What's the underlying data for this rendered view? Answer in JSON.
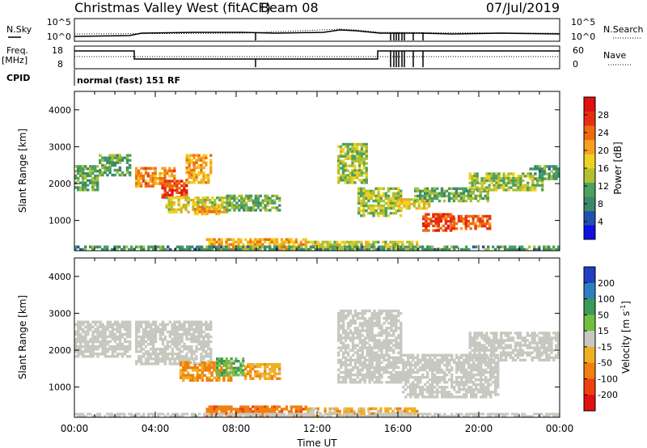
{
  "header": {
    "title": "Christmas Valley West (fitACF)",
    "beam": "Beam 08",
    "date": "07/Jul/2019"
  },
  "ancillary": {
    "nsky_label": "N.Sky",
    "nsearch_label": "N.Search",
    "freq_label_line1": "Freq.",
    "freq_label_line2": "[MHz]",
    "nave_label": "Nave",
    "cpid_label": "CPID",
    "cpid_text": "normal (fast) 151 RF",
    "noise_ticks": [
      "10^5",
      "10^0"
    ],
    "freq_ticks": [
      "18",
      "8"
    ],
    "nave_ticks": [
      "60",
      "0"
    ]
  },
  "chart_data": [
    {
      "type": "heatmap",
      "quantity": "power",
      "xlabel": "",
      "ylabel": "Slant Range [km]",
      "x_range_hours": [
        0,
        24
      ],
      "ylim": [
        180,
        4500
      ],
      "y_ticks": [
        1000,
        2000,
        3000,
        4000
      ],
      "colorbar": {
        "label": "Power [dB]",
        "ticks": [
          4,
          8,
          12,
          16,
          20,
          24,
          28
        ],
        "range": [
          0,
          32
        ],
        "colors": [
          "#1010e0",
          "#2050b0",
          "#3a8a6a",
          "#4ca060",
          "#b0c030",
          "#f0d020",
          "#f7a020",
          "#f06a10",
          "#e83010",
          "#e01010"
        ]
      },
      "patches": [
        {
          "t0": 0.0,
          "t1": 1.2,
          "r0": 1800,
          "r1": 2500,
          "value": 12
        },
        {
          "t0": 1.2,
          "t1": 2.8,
          "r0": 2200,
          "r1": 2800,
          "value": 11
        },
        {
          "t0": 3.0,
          "t1": 5.0,
          "r0": 1900,
          "r1": 2450,
          "value": 22
        },
        {
          "t0": 4.3,
          "t1": 5.6,
          "r0": 1600,
          "r1": 2100,
          "value": 26
        },
        {
          "t0": 5.5,
          "t1": 6.8,
          "r0": 2000,
          "r1": 2800,
          "value": 20
        },
        {
          "t0": 4.5,
          "t1": 7.6,
          "r0": 1200,
          "r1": 1650,
          "value": 16
        },
        {
          "t0": 5.8,
          "t1": 7.2,
          "r0": 1150,
          "r1": 1400,
          "value": 22
        },
        {
          "t0": 7.5,
          "t1": 10.2,
          "r0": 1250,
          "r1": 1700,
          "value": 12
        },
        {
          "t0": 13.0,
          "t1": 14.5,
          "r0": 2000,
          "r1": 3100,
          "value": 14
        },
        {
          "t0": 14.0,
          "t1": 16.2,
          "r0": 1100,
          "r1": 1900,
          "value": 15
        },
        {
          "t0": 16.0,
          "t1": 17.6,
          "r0": 1300,
          "r1": 1600,
          "value": 18
        },
        {
          "t0": 17.2,
          "t1": 18.8,
          "r0": 700,
          "r1": 1200,
          "value": 26
        },
        {
          "t0": 18.6,
          "t1": 20.6,
          "r0": 750,
          "r1": 1150,
          "value": 25
        },
        {
          "t0": 16.8,
          "t1": 20.5,
          "r0": 1500,
          "r1": 1900,
          "value": 12
        },
        {
          "t0": 19.5,
          "t1": 23.2,
          "r0": 1800,
          "r1": 2300,
          "value": 14
        },
        {
          "t0": 22.5,
          "t1": 24.0,
          "r0": 2100,
          "r1": 2500,
          "value": 10
        },
        {
          "t0": 6.5,
          "t1": 11.5,
          "r0": 180,
          "r1": 520,
          "value": 20
        },
        {
          "t0": 11.5,
          "t1": 17.0,
          "r0": 180,
          "r1": 450,
          "value": 16
        },
        {
          "t0": 0.0,
          "t1": 24.0,
          "r0": 180,
          "r1": 320,
          "value": 10
        }
      ]
    },
    {
      "type": "heatmap",
      "quantity": "velocity",
      "xlabel": "Time UT",
      "ylabel": "Slant Range [km]",
      "x_range_hours": [
        0,
        24
      ],
      "x_ticks": [
        "00:00",
        "04:00",
        "08:00",
        "12:00",
        "16:00",
        "20:00",
        "00:00"
      ],
      "ylim": [
        180,
        4500
      ],
      "y_ticks": [
        1000,
        2000,
        3000,
        4000
      ],
      "colorbar": {
        "label": "Velocity",
        "unit_base": "[m s",
        "unit_exp": "-1",
        "unit_end": "]",
        "ticks": [
          200,
          100,
          50,
          15,
          -15,
          -50,
          -100,
          -200
        ],
        "colors": [
          "#2040c0",
          "#2e7fbf",
          "#3a9a5a",
          "#70c040",
          "#c8c8c0",
          "#f0b020",
          "#f08010",
          "#f04010",
          "#e01010"
        ]
      },
      "patches": [
        {
          "t0": 0.0,
          "t1": 2.8,
          "r0": 1800,
          "r1": 2800,
          "value": 0
        },
        {
          "t0": 3.0,
          "t1": 6.8,
          "r0": 1600,
          "r1": 2800,
          "value": 0
        },
        {
          "t0": 5.2,
          "t1": 7.8,
          "r0": 1150,
          "r1": 1700,
          "value": -60
        },
        {
          "t0": 7.0,
          "t1": 8.4,
          "r0": 1300,
          "r1": 1800,
          "value": 40
        },
        {
          "t0": 8.4,
          "t1": 10.2,
          "r0": 1200,
          "r1": 1650,
          "value": -40
        },
        {
          "t0": 13.0,
          "t1": 16.2,
          "r0": 1100,
          "r1": 3100,
          "value": 0
        },
        {
          "t0": 16.2,
          "t1": 21.0,
          "r0": 700,
          "r1": 1900,
          "value": 0
        },
        {
          "t0": 19.5,
          "t1": 24.0,
          "r0": 1700,
          "r1": 2500,
          "value": 0
        },
        {
          "t0": 6.5,
          "t1": 11.5,
          "r0": 180,
          "r1": 500,
          "value": -80
        },
        {
          "t0": 11.5,
          "t1": 17.0,
          "r0": 180,
          "r1": 450,
          "value": -30
        },
        {
          "t0": 0.0,
          "t1": 24.0,
          "r0": 180,
          "r1": 300,
          "value": 0
        }
      ]
    }
  ]
}
